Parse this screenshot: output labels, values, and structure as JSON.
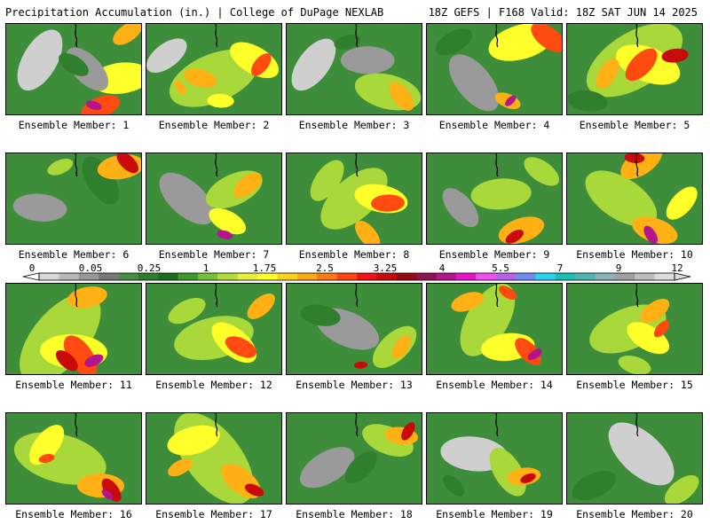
{
  "header": {
    "title": "Precipitation Accumulation (in.) | College of DuPage NEXLAB",
    "run_info": "18Z GEFS | F168 Valid: 18Z SAT JUN 14 2025"
  },
  "panels": [
    {
      "label": "Ensemble Member: 1"
    },
    {
      "label": "Ensemble Member: 2"
    },
    {
      "label": "Ensemble Member: 3"
    },
    {
      "label": "Ensemble Member: 4"
    },
    {
      "label": "Ensemble Member: 5"
    },
    {
      "label": "Ensemble Member: 6"
    },
    {
      "label": "Ensemble Member: 7"
    },
    {
      "label": "Ensemble Member: 8"
    },
    {
      "label": "Ensemble Member: 9"
    },
    {
      "label": "Ensemble Member: 10"
    },
    {
      "label": "Ensemble Member: 11"
    },
    {
      "label": "Ensemble Member: 12"
    },
    {
      "label": "Ensemble Member: 13"
    },
    {
      "label": "Ensemble Member: 14"
    },
    {
      "label": "Ensemble Member: 15"
    },
    {
      "label": "Ensemble Member: 16"
    },
    {
      "label": "Ensemble Member: 17"
    },
    {
      "label": "Ensemble Member: 18"
    },
    {
      "label": "Ensemble Member: 19"
    },
    {
      "label": "Ensemble Member: 20"
    }
  ],
  "colorbar": {
    "tick_labels": [
      "0",
      "0.05",
      "0.25",
      "1",
      "1.75",
      "2.5",
      "3.25",
      "4",
      "5.5",
      "7",
      "9",
      "12"
    ],
    "colors": [
      "#d8d8d8",
      "#b8b8b8",
      "#989898",
      "#787878",
      "#4a8a4a",
      "#2e7d2e",
      "#1f6b1f",
      "#3c9a28",
      "#74c238",
      "#b4dc3a",
      "#e6f03c",
      "#ffff2a",
      "#ffd21a",
      "#ffaa14",
      "#ff7a10",
      "#ff4410",
      "#f01414",
      "#c80a0a",
      "#960a14",
      "#8c1452",
      "#b4148c",
      "#e614c8",
      "#f050f0",
      "#b464e6",
      "#6e8cf0",
      "#28d2f0",
      "#19beb4",
      "#50b4b4",
      "#8cb4b4",
      "#a0a0a0",
      "#bebebe",
      "#dcdcdc"
    ]
  },
  "chart_data": {
    "type": "heatmap",
    "title": "Precipitation Accumulation (in.) | College of DuPage NEXLAB",
    "subtitle": "18Z GEFS | F168 Valid: 18Z SAT JUN 14 2025",
    "colorbar_levels": [
      0,
      0.05,
      0.25,
      1,
      1.75,
      2.5,
      3.25,
      4,
      5.5,
      7,
      9,
      12
    ],
    "members": [
      {
        "member": 1,
        "features": [
          [
            0.25,
            0.4,
            0.5,
            0.0
          ],
          [
            0.6,
            0.5,
            0.4,
            0.05
          ],
          [
            0.5,
            0.45,
            0.25,
            0.25
          ],
          [
            0.85,
            0.6,
            0.45,
            1.75
          ],
          [
            0.9,
            0.1,
            0.25,
            2.5
          ],
          [
            0.7,
            0.92,
            0.3,
            3.25
          ],
          [
            0.65,
            0.9,
            0.12,
            5.5
          ]
        ]
      },
      {
        "member": 2,
        "features": [
          [
            0.15,
            0.35,
            0.35,
            0.0
          ],
          [
            0.5,
            0.6,
            0.7,
            1.0
          ],
          [
            0.8,
            0.4,
            0.4,
            1.75
          ],
          [
            0.4,
            0.6,
            0.25,
            2.5
          ],
          [
            0.85,
            0.45,
            0.2,
            3.25
          ],
          [
            0.25,
            0.7,
            0.12,
            2.5
          ],
          [
            0.55,
            0.85,
            0.2,
            1.75
          ]
        ]
      },
      {
        "member": 3,
        "features": [
          [
            0.2,
            0.45,
            0.45,
            0.0
          ],
          [
            0.6,
            0.4,
            0.4,
            0.05
          ],
          [
            0.75,
            0.75,
            0.5,
            1.0
          ],
          [
            0.85,
            0.8,
            0.25,
            2.5
          ],
          [
            0.45,
            0.2,
            0.2,
            0.25
          ]
        ]
      },
      {
        "member": 4,
        "features": [
          [
            0.35,
            0.65,
            0.5,
            0.05
          ],
          [
            0.7,
            0.2,
            0.5,
            1.75
          ],
          [
            0.9,
            0.15,
            0.3,
            3.25
          ],
          [
            0.6,
            0.85,
            0.2,
            2.5
          ],
          [
            0.62,
            0.85,
            0.1,
            5.5
          ],
          [
            0.2,
            0.2,
            0.3,
            0.25
          ]
        ]
      },
      {
        "member": 5,
        "features": [
          [
            0.5,
            0.4,
            0.8,
            1.0
          ],
          [
            0.6,
            0.45,
            0.5,
            1.75
          ],
          [
            0.55,
            0.45,
            0.3,
            3.25
          ],
          [
            0.8,
            0.35,
            0.2,
            4.0
          ],
          [
            0.3,
            0.55,
            0.25,
            2.5
          ],
          [
            0.15,
            0.85,
            0.3,
            0.25
          ]
        ]
      },
      {
        "member": 6,
        "features": [
          [
            0.25,
            0.6,
            0.4,
            0.05
          ],
          [
            0.7,
            0.3,
            0.4,
            0.25
          ],
          [
            0.85,
            0.15,
            0.35,
            2.5
          ],
          [
            0.9,
            0.1,
            0.2,
            4.0
          ],
          [
            0.4,
            0.15,
            0.2,
            1.0
          ]
        ]
      },
      {
        "member": 7,
        "features": [
          [
            0.3,
            0.5,
            0.5,
            0.05
          ],
          [
            0.65,
            0.4,
            0.45,
            1.0
          ],
          [
            0.75,
            0.35,
            0.25,
            2.5
          ],
          [
            0.6,
            0.75,
            0.3,
            1.75
          ],
          [
            0.58,
            0.9,
            0.12,
            5.5
          ]
        ]
      },
      {
        "member": 8,
        "features": [
          [
            0.5,
            0.5,
            0.6,
            1.0
          ],
          [
            0.7,
            0.5,
            0.4,
            1.75
          ],
          [
            0.75,
            0.55,
            0.25,
            3.25
          ],
          [
            0.6,
            0.9,
            0.25,
            2.5
          ],
          [
            0.3,
            0.3,
            0.35,
            1.0
          ]
        ]
      },
      {
        "member": 9,
        "features": [
          [
            0.25,
            0.6,
            0.35,
            0.05
          ],
          [
            0.55,
            0.45,
            0.45,
            1.0
          ],
          [
            0.7,
            0.85,
            0.35,
            2.5
          ],
          [
            0.65,
            0.92,
            0.15,
            4.0
          ],
          [
            0.85,
            0.2,
            0.3,
            1.0
          ]
        ]
      },
      {
        "member": 10,
        "features": [
          [
            0.4,
            0.5,
            0.6,
            1.0
          ],
          [
            0.55,
            0.1,
            0.35,
            2.5
          ],
          [
            0.5,
            0.05,
            0.15,
            4.0
          ],
          [
            0.65,
            0.85,
            0.35,
            2.5
          ],
          [
            0.62,
            0.9,
            0.15,
            5.5
          ],
          [
            0.85,
            0.55,
            0.3,
            1.75
          ]
        ]
      },
      {
        "member": 11,
        "features": [
          [
            0.4,
            0.6,
            0.8,
            1.0
          ],
          [
            0.5,
            0.75,
            0.5,
            1.75
          ],
          [
            0.55,
            0.8,
            0.35,
            3.25
          ],
          [
            0.45,
            0.85,
            0.2,
            4.0
          ],
          [
            0.65,
            0.85,
            0.15,
            5.5
          ],
          [
            0.6,
            0.15,
            0.3,
            2.5
          ]
        ]
      },
      {
        "member": 12,
        "features": [
          [
            0.5,
            0.6,
            0.6,
            1.0
          ],
          [
            0.65,
            0.65,
            0.4,
            1.75
          ],
          [
            0.7,
            0.7,
            0.25,
            3.25
          ],
          [
            0.85,
            0.25,
            0.25,
            2.5
          ],
          [
            0.3,
            0.3,
            0.3,
            1.0
          ]
        ]
      },
      {
        "member": 13,
        "features": [
          [
            0.45,
            0.5,
            0.5,
            0.05
          ],
          [
            0.25,
            0.35,
            0.3,
            0.25
          ],
          [
            0.8,
            0.7,
            0.4,
            1.0
          ],
          [
            0.85,
            0.7,
            0.2,
            2.5
          ],
          [
            0.55,
            0.9,
            0.1,
            4.0
          ]
        ]
      },
      {
        "member": 14,
        "features": [
          [
            0.45,
            0.4,
            0.6,
            1.0
          ],
          [
            0.6,
            0.7,
            0.4,
            1.75
          ],
          [
            0.75,
            0.75,
            0.25,
            3.25
          ],
          [
            0.8,
            0.78,
            0.12,
            5.5
          ],
          [
            0.3,
            0.2,
            0.25,
            2.5
          ],
          [
            0.6,
            0.1,
            0.15,
            3.25
          ]
        ]
      },
      {
        "member": 15,
        "features": [
          [
            0.45,
            0.5,
            0.6,
            1.0
          ],
          [
            0.6,
            0.6,
            0.35,
            1.75
          ],
          [
            0.65,
            0.3,
            0.25,
            2.5
          ],
          [
            0.7,
            0.5,
            0.15,
            3.25
          ],
          [
            0.5,
            0.9,
            0.25,
            1.0
          ]
        ]
      },
      {
        "member": 16,
        "features": [
          [
            0.4,
            0.5,
            0.7,
            1.0
          ],
          [
            0.3,
            0.35,
            0.35,
            1.75
          ],
          [
            0.7,
            0.8,
            0.35,
            2.5
          ],
          [
            0.78,
            0.85,
            0.2,
            4.0
          ],
          [
            0.75,
            0.9,
            0.1,
            5.5
          ],
          [
            0.3,
            0.5,
            0.12,
            3.25
          ]
        ]
      },
      {
        "member": 17,
        "features": [
          [
            0.5,
            0.5,
            0.8,
            1.0
          ],
          [
            0.35,
            0.3,
            0.4,
            1.75
          ],
          [
            0.7,
            0.75,
            0.35,
            2.5
          ],
          [
            0.8,
            0.85,
            0.15,
            4.0
          ],
          [
            0.25,
            0.6,
            0.2,
            2.5
          ]
        ]
      },
      {
        "member": 18,
        "features": [
          [
            0.3,
            0.6,
            0.45,
            0.05
          ],
          [
            0.75,
            0.3,
            0.4,
            1.0
          ],
          [
            0.85,
            0.25,
            0.25,
            2.5
          ],
          [
            0.9,
            0.2,
            0.15,
            4.0
          ],
          [
            0.55,
            0.6,
            0.3,
            0.25
          ]
        ]
      },
      {
        "member": 19,
        "features": [
          [
            0.35,
            0.45,
            0.5,
            0.0
          ],
          [
            0.6,
            0.65,
            0.4,
            1.0
          ],
          [
            0.72,
            0.7,
            0.25,
            2.5
          ],
          [
            0.75,
            0.72,
            0.12,
            4.0
          ],
          [
            0.2,
            0.8,
            0.2,
            0.25
          ]
        ]
      },
      {
        "member": 20,
        "features": [
          [
            0.55,
            0.45,
            0.6,
            0.0
          ],
          [
            0.5,
            0.4,
            0.3,
            0.0
          ],
          [
            0.2,
            0.8,
            0.35,
            0.25
          ],
          [
            0.85,
            0.85,
            0.3,
            1.0
          ],
          [
            0.6,
            0.5,
            0.15,
            0.0
          ]
        ]
      }
    ]
  }
}
